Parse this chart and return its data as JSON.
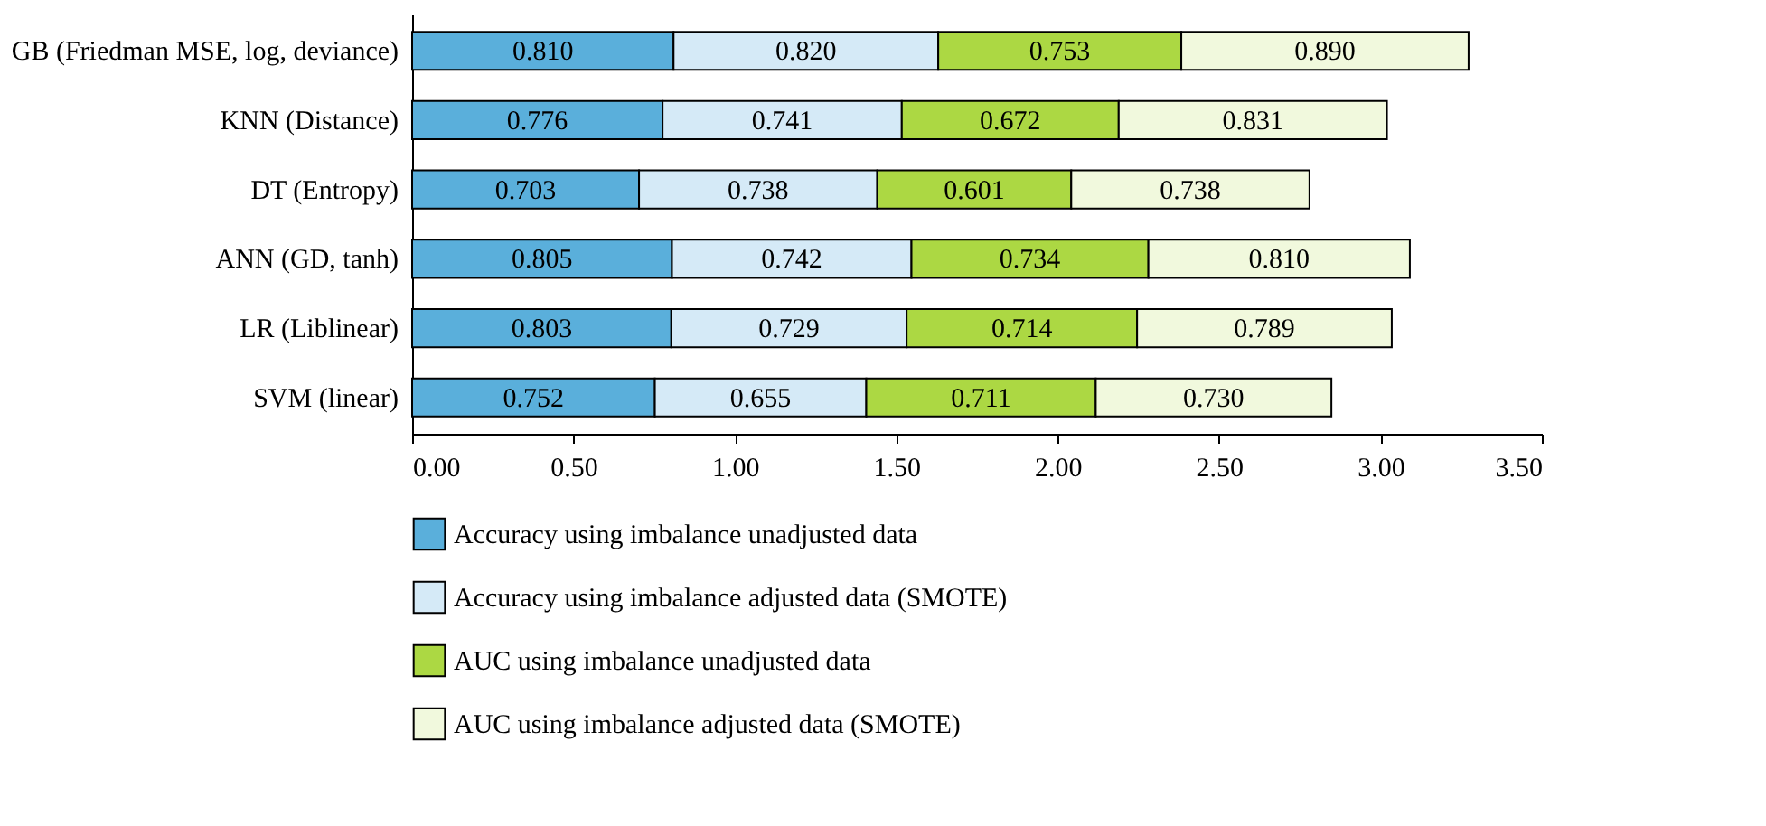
{
  "chart_data": {
    "type": "bar",
    "orientation": "horizontal",
    "stacked": true,
    "categories": [
      "GB (Friedman MSE, log, deviance)",
      "KNN (Distance)",
      "DT (Entropy)",
      "ANN (GD, tanh)",
      "LR (Liblinear)",
      "SVM (linear)"
    ],
    "series": [
      {
        "name": "Accuracy using imbalance unadjusted data",
        "color": "#5aafdb",
        "values": [
          0.81,
          0.776,
          0.703,
          0.805,
          0.803,
          0.752
        ],
        "value_labels": [
          "0.810",
          "0.776",
          "0.703",
          "0.805",
          "0.803",
          "0.752"
        ]
      },
      {
        "name": "Accuracy using imbalance adjusted data (SMOTE)",
        "color": "#d5eaf7",
        "values": [
          0.82,
          0.741,
          0.738,
          0.742,
          0.729,
          0.655
        ],
        "value_labels": [
          "0.820",
          "0.741",
          "0.738",
          "0.742",
          "0.729",
          "0.655"
        ]
      },
      {
        "name": "AUC using imbalance unadjusted data",
        "color": "#acd843",
        "values": [
          0.753,
          0.672,
          0.601,
          0.734,
          0.714,
          0.711
        ],
        "value_labels": [
          "0.753",
          "0.672",
          "0.601",
          "0.734",
          "0.714",
          "0.711"
        ]
      },
      {
        "name": "AUC using imbalance adjusted data (SMOTE)",
        "color": "#f1f9dd",
        "values": [
          0.89,
          0.831,
          0.738,
          0.81,
          0.789,
          0.73
        ],
        "value_labels": [
          "0.890",
          "0.831",
          "0.738",
          "0.810",
          "0.789",
          "0.730"
        ]
      }
    ],
    "xlim": [
      0,
      3.5
    ],
    "xticks": [
      {
        "value": 0,
        "label": "0.00"
      },
      {
        "value": 0.5,
        "label": "0.50"
      },
      {
        "value": 1,
        "label": "1.00"
      },
      {
        "value": 1.5,
        "label": "1.50"
      },
      {
        "value": 2,
        "label": "2.00"
      },
      {
        "value": 2.5,
        "label": "2.50"
      },
      {
        "value": 3,
        "label": "3.00"
      },
      {
        "value": 3.5,
        "label": "3.50"
      }
    ],
    "grid": false,
    "legend": "bottom"
  }
}
